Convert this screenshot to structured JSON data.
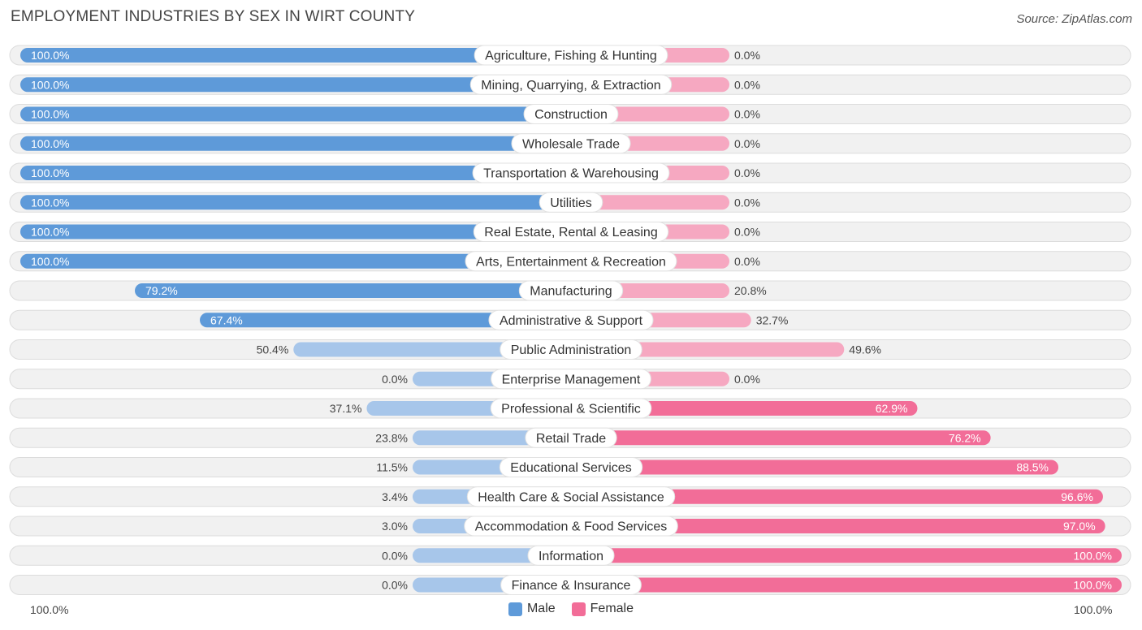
{
  "header": {
    "title": "EMPLOYMENT INDUSTRIES BY SEX IN WIRT COUNTY",
    "source": "Source: ZipAtlas.com"
  },
  "colors": {
    "male_strong": "#5e9ad9",
    "male_light": "#a7c6ea",
    "female_strong": "#f26d98",
    "female_light": "#f6a8c1",
    "track": "#f1f1f1",
    "track_border": "#dcdcdc"
  },
  "axis": {
    "left_label": "100.0%",
    "right_label": "100.0%"
  },
  "legend": {
    "male_label": "Male",
    "female_label": "Female"
  },
  "chart_data": {
    "type": "bar",
    "orientation": "diverging-horizontal",
    "title": "EMPLOYMENT INDUSTRIES BY SEX IN WIRT COUNTY",
    "xlim": [
      -100,
      100
    ],
    "categories": [
      "Agriculture, Fishing & Hunting",
      "Mining, Quarrying, & Extraction",
      "Construction",
      "Wholesale Trade",
      "Transportation & Warehousing",
      "Utilities",
      "Real Estate, Rental & Leasing",
      "Arts, Entertainment & Recreation",
      "Manufacturing",
      "Administrative & Support",
      "Public Administration",
      "Enterprise Management",
      "Professional & Scientific",
      "Retail Trade",
      "Educational Services",
      "Health Care & Social Assistance",
      "Accommodation & Food Services",
      "Information",
      "Finance & Insurance"
    ],
    "series": [
      {
        "name": "Male",
        "values": [
          100.0,
          100.0,
          100.0,
          100.0,
          100.0,
          100.0,
          100.0,
          100.0,
          79.2,
          67.4,
          50.4,
          0.0,
          37.1,
          23.8,
          11.5,
          3.4,
          3.0,
          0.0,
          0.0
        ],
        "labels": [
          "100.0%",
          "100.0%",
          "100.0%",
          "100.0%",
          "100.0%",
          "100.0%",
          "100.0%",
          "100.0%",
          "79.2%",
          "67.4%",
          "50.4%",
          "0.0%",
          "37.1%",
          "23.8%",
          "11.5%",
          "3.4%",
          "3.0%",
          "0.0%",
          "0.0%"
        ]
      },
      {
        "name": "Female",
        "values": [
          0.0,
          0.0,
          0.0,
          0.0,
          0.0,
          0.0,
          0.0,
          0.0,
          20.8,
          32.7,
          49.6,
          0.0,
          62.9,
          76.2,
          88.5,
          96.6,
          97.0,
          100.0,
          100.0
        ],
        "labels": [
          "0.0%",
          "0.0%",
          "0.0%",
          "0.0%",
          "0.0%",
          "0.0%",
          "0.0%",
          "0.0%",
          "20.8%",
          "32.7%",
          "49.6%",
          "0.0%",
          "62.9%",
          "76.2%",
          "88.5%",
          "96.6%",
          "97.0%",
          "100.0%",
          "100.0%"
        ]
      }
    ],
    "legend": [
      "Male",
      "Female"
    ],
    "legend_position": "bottom-center"
  }
}
